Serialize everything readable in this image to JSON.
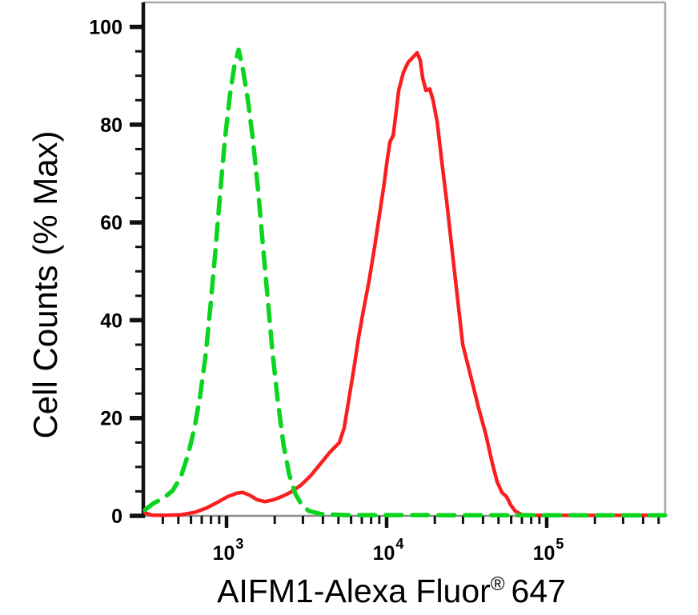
{
  "chart_data": {
    "type": "line",
    "subtype": "flow-cytometry-histogram-overlay",
    "xlabel": "AIFM1-Alexa Fluor® 647",
    "xlabel_parts": {
      "main": "AIFM1-Alexa Fluor",
      "sup": "®",
      "tail": "647"
    },
    "ylabel": "Cell Counts (% Max)",
    "x_scale": "log",
    "x_log10_range": [
      2.48,
      5.74
    ],
    "ylim": [
      0,
      105
    ],
    "grid": false,
    "legend": null,
    "y_ticks_major": [
      0,
      20,
      40,
      60,
      80,
      100
    ],
    "y_tick_labels": [
      "0",
      "20",
      "40",
      "60",
      "80",
      "100"
    ],
    "y_minor_step": 5,
    "x_ticks_major": [
      {
        "value": 1000,
        "label_base": "10",
        "label_exp": "3"
      },
      {
        "value": 10000,
        "label_base": "10",
        "label_exp": "4"
      },
      {
        "value": 100000,
        "label_base": "10",
        "label_exp": "5"
      }
    ],
    "x_minor_decades": [
      2,
      3,
      4,
      5
    ],
    "colors": {
      "red_curve": "#fa1e1e",
      "green_curve": "#0bd41e",
      "axis_black": "#111111",
      "frame_gray": "#a8a8a8",
      "baseline_gray": "#8d8d8d",
      "text": "#000000",
      "background": "#ffffff"
    },
    "series": [
      {
        "name": "red solid curve",
        "line_style": "solid",
        "color": "#fa1e1e",
        "points": [
          [
            309,
            0.6
          ],
          [
            343,
            0.15
          ],
          [
            407,
            0.1
          ],
          [
            513,
            0.2
          ],
          [
            631,
            0.7
          ],
          [
            750,
            1.6
          ],
          [
            881,
            2.8
          ],
          [
            1010,
            3.9
          ],
          [
            1150,
            4.6
          ],
          [
            1260,
            4.8
          ],
          [
            1400,
            4.2
          ],
          [
            1550,
            3.3
          ],
          [
            1740,
            2.9
          ],
          [
            1970,
            3.3
          ],
          [
            2240,
            4.0
          ],
          [
            2540,
            4.9
          ],
          [
            2920,
            6.3
          ],
          [
            3350,
            8.2
          ],
          [
            3850,
            10.6
          ],
          [
            4420,
            13.0
          ],
          [
            5070,
            15.0
          ],
          [
            5430,
            18.0
          ],
          [
            5820,
            24.0
          ],
          [
            6240,
            30.0
          ],
          [
            6680,
            36.5
          ],
          [
            7160,
            42.0
          ],
          [
            7760,
            48.0
          ],
          [
            8410,
            55.0
          ],
          [
            9020,
            61.5
          ],
          [
            9660,
            68.0
          ],
          [
            10100,
            73.0
          ],
          [
            10500,
            76.5
          ],
          [
            11000,
            77.8
          ],
          [
            11400,
            82.0
          ],
          [
            11900,
            87.0
          ],
          [
            12700,
            90.6
          ],
          [
            13600,
            92.7
          ],
          [
            14600,
            93.8
          ],
          [
            15500,
            94.7
          ],
          [
            16200,
            93.2
          ],
          [
            16800,
            89.5
          ],
          [
            17600,
            87.0
          ],
          [
            18600,
            87.3
          ],
          [
            19500,
            85.0
          ],
          [
            20700,
            80.5
          ],
          [
            22100,
            72.5
          ],
          [
            23700,
            64.5
          ],
          [
            25700,
            54.0
          ],
          [
            27500,
            45.5
          ],
          [
            29900,
            35.0
          ],
          [
            33500,
            28.6
          ],
          [
            37600,
            22.0
          ],
          [
            41700,
            16.6
          ],
          [
            45700,
            10.8
          ],
          [
            49000,
            7.0
          ],
          [
            52500,
            4.8
          ],
          [
            56200,
            3.9
          ],
          [
            59600,
            2.2
          ],
          [
            63800,
            0.9
          ],
          [
            70000,
            0.25
          ],
          [
            81300,
            0.1
          ],
          [
            549000,
            0.1
          ]
        ]
      },
      {
        "name": "green dashed curve",
        "line_style": "dashed",
        "color": "#0bd41e",
        "points": [
          [
            309,
            1.2
          ],
          [
            351,
            2.6
          ],
          [
            403,
            3.6
          ],
          [
            462,
            5.2
          ],
          [
            519,
            8.0
          ],
          [
            575,
            12.5
          ],
          [
            631,
            18.0
          ],
          [
            684,
            24.5
          ],
          [
            741,
            33.0
          ],
          [
            794,
            43.0
          ],
          [
            851,
            54.0
          ],
          [
            912,
            66.0
          ],
          [
            977,
            77.0
          ],
          [
            1050,
            86.0
          ],
          [
            1120,
            92.0
          ],
          [
            1190,
            95.3
          ],
          [
            1270,
            91.0
          ],
          [
            1360,
            85.0
          ],
          [
            1460,
            77.0
          ],
          [
            1570,
            67.0
          ],
          [
            1680,
            56.0
          ],
          [
            1800,
            45.0
          ],
          [
            1930,
            34.0
          ],
          [
            2090,
            23.5
          ],
          [
            2270,
            14.5
          ],
          [
            2460,
            8.5
          ],
          [
            2690,
            4.5
          ],
          [
            2950,
            2.2
          ],
          [
            3270,
            1.0
          ],
          [
            3850,
            0.4
          ],
          [
            5500,
            0.15
          ],
          [
            549000,
            0.1
          ]
        ]
      }
    ]
  }
}
